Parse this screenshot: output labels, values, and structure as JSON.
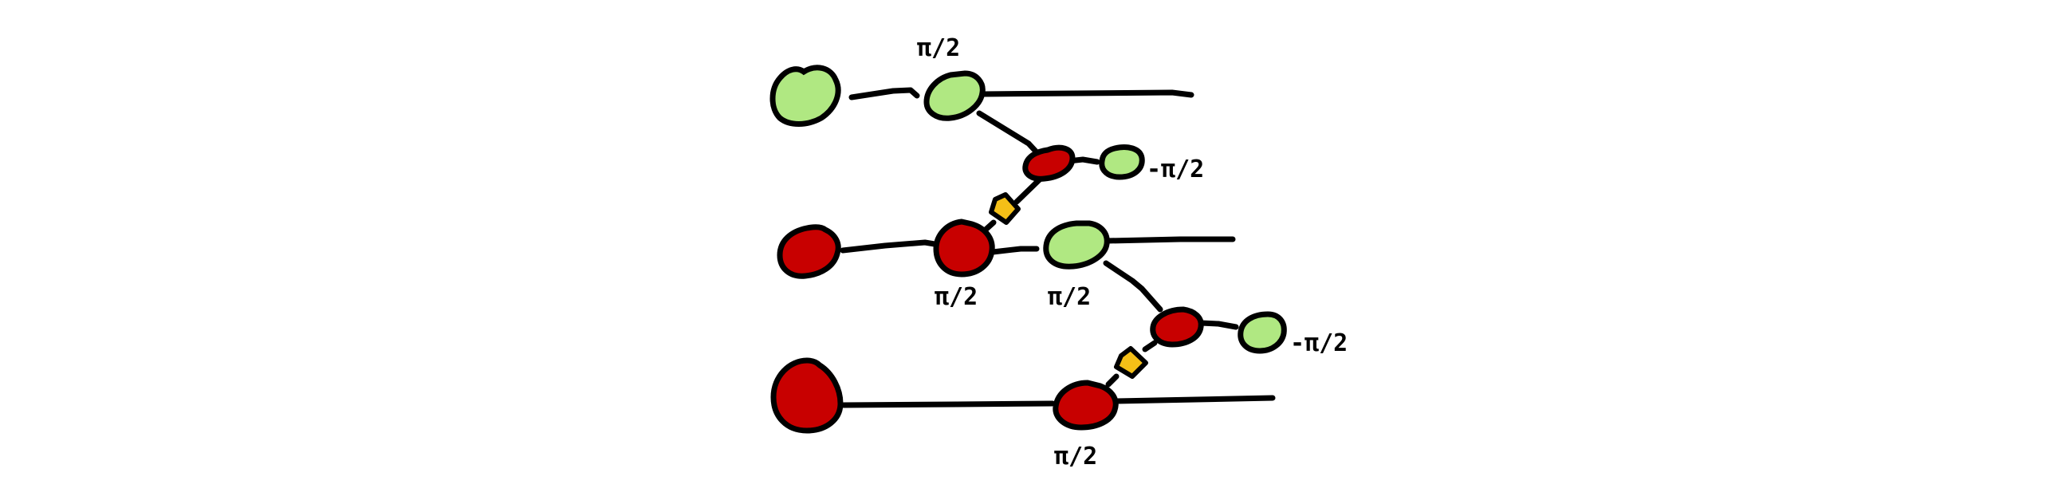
{
  "colors": {
    "z_spider": "#b0e882",
    "x_spider": "#c80000",
    "hadamard": "#f4bf17",
    "wire": "#000000",
    "background": "#ffffff"
  },
  "spiders": [
    {
      "id": "q0-input",
      "kind": "z",
      "phase": ""
    },
    {
      "id": "q0-z-a",
      "kind": "z",
      "phase": "π/2"
    },
    {
      "id": "q0-x-b",
      "kind": "x",
      "phase": ""
    },
    {
      "id": "q0-z-c",
      "kind": "z",
      "phase": "-π/2"
    },
    {
      "id": "q1-input",
      "kind": "x",
      "phase": ""
    },
    {
      "id": "q1-x-a",
      "kind": "x",
      "phase": "π/2"
    },
    {
      "id": "q1-z-b",
      "kind": "z",
      "phase": "π/2"
    },
    {
      "id": "q1-x-c",
      "kind": "x",
      "phase": ""
    },
    {
      "id": "q1-z-d",
      "kind": "z",
      "phase": "-π/2"
    },
    {
      "id": "q2-input",
      "kind": "x",
      "phase": ""
    },
    {
      "id": "q2-x-a",
      "kind": "x",
      "phase": "π/2"
    }
  ],
  "hadamard_edges": [
    {
      "from": "q0-x-b",
      "to": "q1-x-a"
    },
    {
      "from": "q1-x-c",
      "to": "q2-x-a"
    }
  ]
}
